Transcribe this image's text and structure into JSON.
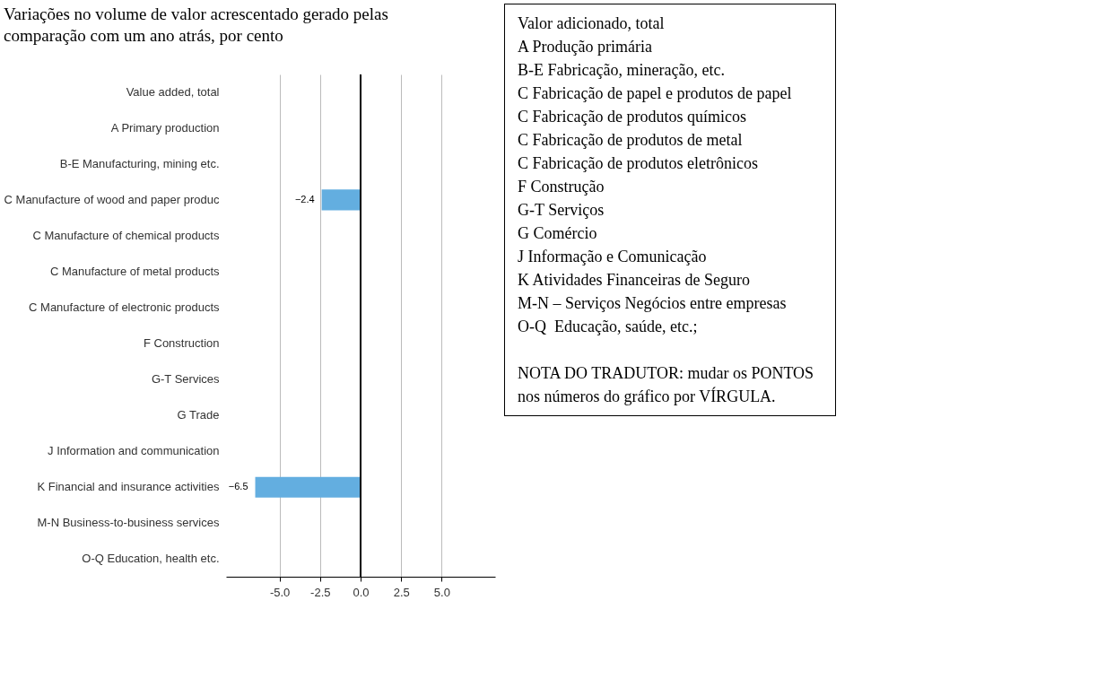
{
  "chart_data": {
    "type": "bar",
    "orientation": "horizontal",
    "title": "Variações no volume de valor acrescentado gerado pelas\ncomparação com um ano atrás, por cento",
    "categories": [
      "Value added, total",
      "A Primary production",
      "B-E Manufacturing, mining etc.",
      "C Manufacture of wood and paper produc",
      "C Manufacture of chemical products",
      "C Manufacture of metal products",
      "C Manufacture of electronic products",
      "F Construction",
      "G-T Services",
      "G Trade",
      "J Information and communication",
      "K Financial and insurance activities",
      "M-N Business-to-business services",
      "O-Q Education, health etc."
    ],
    "values": [
      null,
      null,
      null,
      -2.4,
      null,
      null,
      null,
      null,
      null,
      null,
      null,
      -6.5,
      null,
      null
    ],
    "colors": [
      "#1a6aa6",
      "#1a6aa6",
      "#1a6aa6",
      "#63aee0",
      "#63aee0",
      "#63aee0",
      "#63aee0",
      "#1a6aa6",
      "#1a6aa6",
      "#63aee0",
      "#63aee0",
      "#63aee0",
      "#63aee0",
      "#63aee0"
    ],
    "xlim": [
      -8.3,
      8.3
    ],
    "xticks": [
      {
        "value": -5,
        "label": "-5.0"
      },
      {
        "value": -2.5,
        "label": "-2.5"
      },
      {
        "value": 0,
        "label": "0.0"
      },
      {
        "value": 2.5,
        "label": "2.5"
      },
      {
        "value": 5,
        "label": "5.0"
      }
    ],
    "grid": "x",
    "data_labels": true,
    "ref_lines": [
      {
        "axis": "x",
        "value": 0,
        "color": "#000000"
      }
    ],
    "annotations": [
      "Valor adicionado, total",
      "A Produção primária",
      "B-E Fabricação, mineração, etc.",
      "C Fabricação de papel e produtos de papel",
      "C Fabricação de produtos químicos",
      "C Fabricação de produtos de metal",
      "C Fabricação de produtos eletrônicos",
      "F Construção",
      "G-T Serviços",
      "G Comércio",
      "J Informação e Comunicação",
      "K Atividades Financeiras de Seguro",
      "M-N – Serviços Negócios entre empresas",
      "O-Q  Educação, saúde, etc.;",
      "NOTA DO TRADUTOR: mudar os PONTOS nos números do gráfico por VÍRGULA."
    ]
  }
}
